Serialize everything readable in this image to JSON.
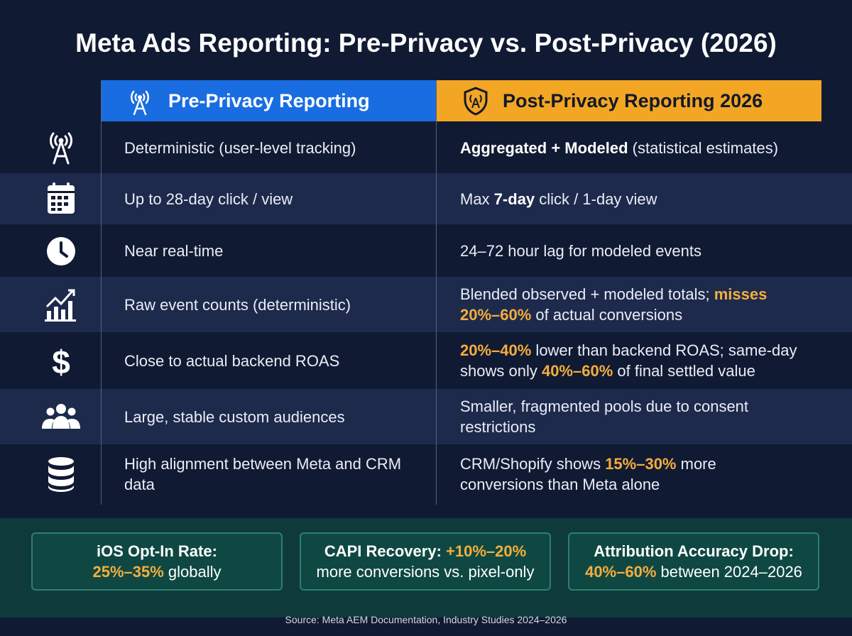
{
  "title": "Meta Ads Reporting: Pre-Privacy vs. Post-Privacy (2026)",
  "columns": {
    "pre": "Pre-Privacy Reporting",
    "post": "Post-Privacy Reporting 2026"
  },
  "rows": [
    {
      "pre": "Deterministic (user-level tracking)",
      "post": [
        "Aggregated + Modeled",
        " (statistical estimates)"
      ]
    },
    {
      "pre": "Up to 28-day click / view",
      "post": [
        "Max ",
        "7-day",
        " click / 1-day view"
      ]
    },
    {
      "pre": "Near real-time",
      "post": [
        "24–72 hour lag for modeled events"
      ]
    },
    {
      "pre": "Raw event counts (deterministic)",
      "post": [
        "Blended observed + modeled totals; ",
        "misses 20%–60%",
        " of actual conversions"
      ]
    },
    {
      "pre": "Close to actual backend ROAS",
      "post": [
        "20%–40%",
        " lower than backend ROAS; same-day shows only ",
        "40%–60%",
        " of final settled value"
      ]
    },
    {
      "pre": "Large, stable custom audiences",
      "post": [
        "Smaller, fragmented pools due to consent restrictions"
      ]
    },
    {
      "pre": "High alignment between Meta and CRM data",
      "post": [
        "CRM/Shopify shows ",
        "15%–30%",
        " more conversions than Meta alone"
      ]
    }
  ],
  "stats": [
    {
      "line1": [
        "iOS Opt-In Rate:"
      ],
      "line2": [
        "25%–35%",
        " globally"
      ]
    },
    {
      "line1": [
        "CAPI Recovery: ",
        "+10%–20%"
      ],
      "line2": [
        "more conversions vs. pixel-only"
      ]
    },
    {
      "line1": [
        "Attribution Accuracy Drop:"
      ],
      "line2": [
        "40%–60%",
        " between 2024–2026"
      ]
    }
  ],
  "source": "Source: Meta AEM Documentation, Industry Studies 2024–2026"
}
